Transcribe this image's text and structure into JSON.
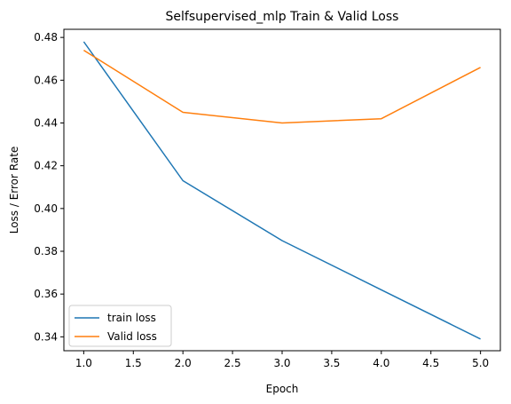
{
  "chart_data": {
    "type": "line",
    "title": "Selfsupervised_mlp Train & Valid Loss",
    "xlabel": "Epoch",
    "ylabel": "Loss / Error Rate",
    "x": [
      1,
      2,
      3,
      4,
      5
    ],
    "xlim": [
      0.8,
      5.2
    ],
    "ylim": [
      0.3335,
      0.4838
    ],
    "xticks": [
      "1.0",
      "1.5",
      "2.0",
      "2.5",
      "3.0",
      "3.5",
      "4.0",
      "4.5",
      "5.0"
    ],
    "yticks": [
      "0.34",
      "0.36",
      "0.38",
      "0.40",
      "0.42",
      "0.44",
      "0.46",
      "0.48"
    ],
    "grid": false,
    "legend": "lower-left",
    "series": [
      {
        "name": "train loss",
        "color": "#1f77b4",
        "values": [
          0.478,
          0.413,
          0.385,
          0.362,
          0.339
        ]
      },
      {
        "name": "Valid loss",
        "color": "#ff7f0e",
        "values": [
          0.474,
          0.445,
          0.44,
          0.442,
          0.466
        ]
      }
    ]
  }
}
